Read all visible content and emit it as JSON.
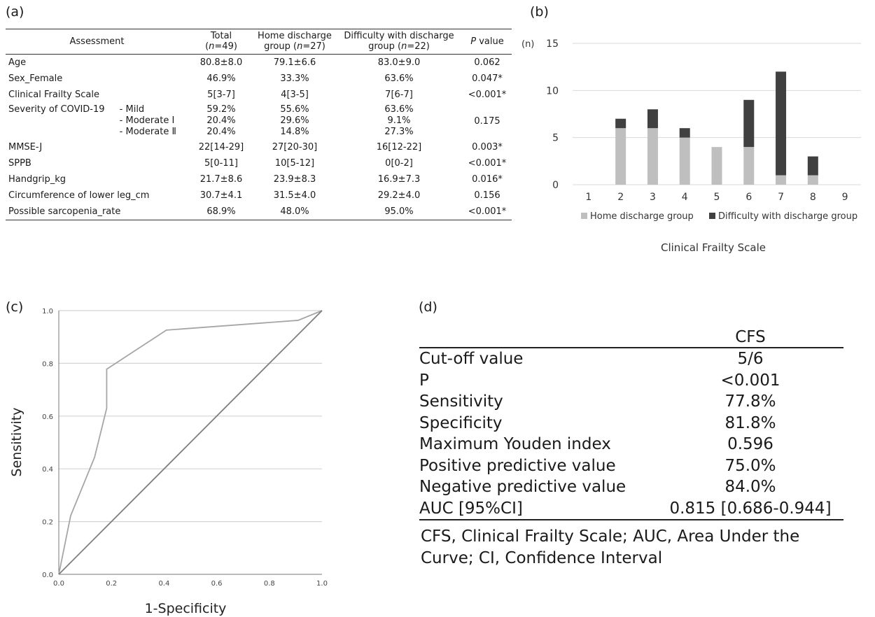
{
  "panels": {
    "a": "(a)",
    "b": "(b)",
    "c": "(c)",
    "d": "(d)"
  },
  "table_a": {
    "headers": [
      {
        "main": "Assessment",
        "sub_pre": "",
        "sub_italic": "",
        "sub_post": ""
      },
      {
        "main": "Total",
        "sub_pre": "(",
        "sub_italic": "n",
        "sub_post": "=49)"
      },
      {
        "main": "Home discharge",
        "sub_pre": "group (",
        "sub_italic": "n",
        "sub_post": "=27)"
      },
      {
        "main": "Difficulty with discharge",
        "sub_pre": "group (",
        "sub_italic": "n",
        "sub_post": "=22)"
      },
      {
        "main_italic": "P",
        "main": " value"
      }
    ],
    "rows": [
      {
        "name": "Age",
        "total": "80.8±8.0",
        "home": "79.1±6.6",
        "diff": "83.0±9.0",
        "p": "0.062"
      },
      {
        "name": "Sex_Female",
        "total": "46.9%",
        "home": "33.3%",
        "diff": "63.6%",
        "p": "0.047*"
      },
      {
        "name": "Clinical Frailty Scale",
        "total": "5[3-7]",
        "home": "4[3-5]",
        "diff": "7[6-7]",
        "p": "<0.001*"
      },
      {
        "name": "MMSE-J",
        "total": "22[14-29]",
        "home": "27[20-30]",
        "diff": "16[12-22]",
        "p": "0.003*"
      },
      {
        "name": "SPPB",
        "total": "5[0-11]",
        "home": "10[5-12]",
        "diff": "0[0-2]",
        "p": "<0.001*"
      },
      {
        "name": "Handgrip_kg",
        "total": "21.7±8.6",
        "home": "23.9±8.3",
        "diff": "16.9±7.3",
        "p": "0.016*"
      },
      {
        "name": "Circumference of lower leg_cm",
        "total": "30.7±4.1",
        "home": "31.5±4.0",
        "diff": "29.2±4.0",
        "p": "0.156"
      },
      {
        "name": "Possible sarcopenia_rate",
        "total": "68.9%",
        "home": "48.0%",
        "diff": "95.0%",
        "p": "<0.001*"
      }
    ],
    "severity": {
      "name": "Severity of COVID-19",
      "levels": [
        "- Mild",
        "- Moderate Ⅰ",
        "- Moderate Ⅱ"
      ],
      "total": [
        "59.2%",
        "20.4%",
        "20.4%"
      ],
      "home": [
        "55.6%",
        "29.6%",
        "14.8%"
      ],
      "diff": [
        "63.6%",
        "9.1%",
        "27.3%"
      ],
      "p": "0.175"
    }
  },
  "chart_data": [
    {
      "type": "bar",
      "stacked": true,
      "categories": [
        "1",
        "2",
        "3",
        "4",
        "5",
        "6",
        "7",
        "8",
        "9"
      ],
      "series": [
        {
          "name": "Home discharge group",
          "color": "#bfbfbf",
          "values": [
            0,
            6,
            6,
            5,
            4,
            4,
            1,
            1,
            0
          ]
        },
        {
          "name": "Difficulty with discharge group",
          "color": "#404040",
          "values": [
            0,
            1,
            2,
            1,
            0,
            5,
            11,
            2,
            0
          ]
        }
      ],
      "ylim": [
        0,
        15
      ],
      "yticks": [
        "0",
        "5",
        "10",
        "15"
      ],
      "ylabel": "(n)",
      "xlabel": "Clinical Frailty Scale",
      "grid": true,
      "legend_position": "bottom"
    },
    {
      "type": "line",
      "xlabel": "1-Specificity",
      "ylabel": "Sensitivity",
      "xlim": [
        0,
        1
      ],
      "ylim": [
        0,
        1
      ],
      "xticks": [
        "0.0",
        "0.2",
        "0.4",
        "0.6",
        "0.8",
        "1.0"
      ],
      "yticks": [
        "0.0",
        "0.2",
        "0.4",
        "0.6",
        "0.8",
        "1.0"
      ],
      "grid": true,
      "series": [
        {
          "color": "#a6a6a6",
          "x": [
            0.0,
            0.045,
            0.136,
            0.182,
            0.182,
            0.409,
            0.909,
            1.0
          ],
          "y": [
            0.0,
            0.222,
            0.444,
            0.63,
            0.778,
            0.926,
            0.963,
            1.0
          ]
        },
        {
          "color": "#7f7f7f",
          "x": [
            0.0,
            1.0
          ],
          "y": [
            0.0,
            1.0
          ]
        }
      ]
    }
  ],
  "table_d": {
    "col_header": "CFS",
    "rows": [
      {
        "label": "Cut-off value",
        "value": "5/6"
      },
      {
        "label": "P",
        "value": "<0.001"
      },
      {
        "label": "Sensitivity",
        "value": "77.8%"
      },
      {
        "label": "Specificity",
        "value": "81.8%"
      },
      {
        "label": "Maximum Youden index",
        "value": "0.596"
      },
      {
        "label": "Positive predictive value",
        "value": "75.0%"
      },
      {
        "label": "Negative predictive value",
        "value": "84.0%"
      },
      {
        "label": "AUC [95%CI]",
        "value": "0.815 [0.686-0.944]"
      }
    ],
    "footnote": "CFS, Clinical Frailty Scale; AUC, Area Under the Curve; CI, Confidence Interval"
  }
}
